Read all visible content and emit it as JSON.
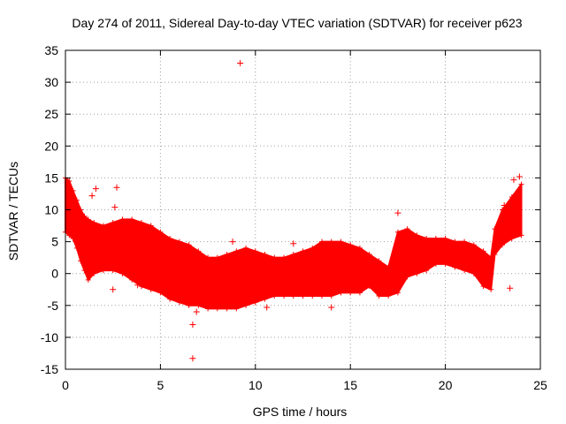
{
  "chart_data": {
    "type": "scatter",
    "title": "Day 274 of 2011, Sidereal Day-to-day VTEC variation (SDTVAR) for receiver p623",
    "xlabel": "GPS time / hours",
    "ylabel": "SDTVAR / TECUs",
    "xlim": [
      0,
      25
    ],
    "ylim": [
      -15,
      35
    ],
    "xticks": [
      0,
      5,
      10,
      15,
      20,
      25
    ],
    "yticks": [
      -15,
      -10,
      -5,
      0,
      5,
      10,
      15,
      20,
      25,
      30,
      35
    ],
    "grid": true,
    "marker": "+",
    "color": "#ff0000",
    "envelope": {
      "description": "dense band of per-satellite SDTVAR values (min/max envelope)",
      "x": [
        0.0,
        0.2,
        0.4,
        0.6,
        0.8,
        1.0,
        1.2,
        1.5,
        2.0,
        2.5,
        3.0,
        3.5,
        4.0,
        4.5,
        5.0,
        5.5,
        6.0,
        6.5,
        7.0,
        7.5,
        8.0,
        8.5,
        9.0,
        9.5,
        10.0,
        10.5,
        11.0,
        11.5,
        12.0,
        12.5,
        13.0,
        13.5,
        14.0,
        14.5,
        15.0,
        15.5,
        16.0,
        16.5,
        17.0,
        17.5,
        18.0,
        18.5,
        19.0,
        19.5,
        20.0,
        20.5,
        21.0,
        21.5,
        22.0,
        22.4,
        22.6,
        23.0,
        23.5,
        24.0
      ],
      "ymax": [
        15.0,
        14.5,
        13.0,
        11.5,
        10.0,
        9.0,
        8.5,
        8.0,
        7.5,
        8.0,
        8.5,
        8.5,
        8.0,
        7.5,
        6.5,
        5.5,
        5.0,
        4.5,
        3.5,
        2.5,
        2.5,
        3.0,
        3.5,
        4.0,
        3.5,
        3.0,
        2.5,
        2.5,
        3.0,
        3.5,
        4.0,
        5.0,
        5.0,
        5.0,
        4.5,
        4.0,
        3.0,
        2.0,
        1.0,
        6.5,
        7.0,
        6.0,
        5.5,
        5.5,
        5.5,
        5.0,
        5.0,
        4.5,
        3.5,
        2.5,
        7.0,
        10.0,
        12.0,
        14.0
      ],
      "ymin": [
        6.5,
        6.0,
        5.5,
        4.0,
        2.0,
        0.5,
        -1.0,
        0.0,
        0.5,
        0.5,
        0.0,
        -1.0,
        -2.0,
        -2.5,
        -3.0,
        -4.0,
        -4.5,
        -5.0,
        -5.0,
        -5.5,
        -5.5,
        -5.5,
        -5.5,
        -5.0,
        -4.5,
        -4.0,
        -3.5,
        -3.5,
        -3.5,
        -3.5,
        -3.5,
        -3.5,
        -3.5,
        -3.0,
        -3.0,
        -3.0,
        -2.0,
        -3.5,
        -3.5,
        -3.0,
        -0.5,
        0.0,
        0.5,
        1.5,
        1.5,
        1.0,
        0.5,
        0.0,
        -2.0,
        -2.5,
        3.0,
        4.5,
        5.5,
        6.0
      ]
    },
    "outliers": [
      {
        "x": 9.2,
        "y": 33.0
      },
      {
        "x": 6.7,
        "y": -13.3
      },
      {
        "x": 6.7,
        "y": -8.0
      },
      {
        "x": 8.8,
        "y": 5.0
      },
      {
        "x": 2.7,
        "y": 13.5
      },
      {
        "x": 1.6,
        "y": 13.3
      },
      {
        "x": 1.4,
        "y": 12.2
      },
      {
        "x": 2.6,
        "y": 10.4
      },
      {
        "x": 2.5,
        "y": -2.5
      },
      {
        "x": 3.8,
        "y": -1.8
      },
      {
        "x": 6.9,
        "y": -6.0
      },
      {
        "x": 10.6,
        "y": -5.3
      },
      {
        "x": 12.0,
        "y": 4.7
      },
      {
        "x": 14.0,
        "y": -5.3
      },
      {
        "x": 17.5,
        "y": 9.5
      },
      {
        "x": 23.1,
        "y": 10.7
      },
      {
        "x": 23.4,
        "y": -2.3
      },
      {
        "x": 23.6,
        "y": 14.7
      },
      {
        "x": 23.9,
        "y": 15.2
      }
    ]
  }
}
